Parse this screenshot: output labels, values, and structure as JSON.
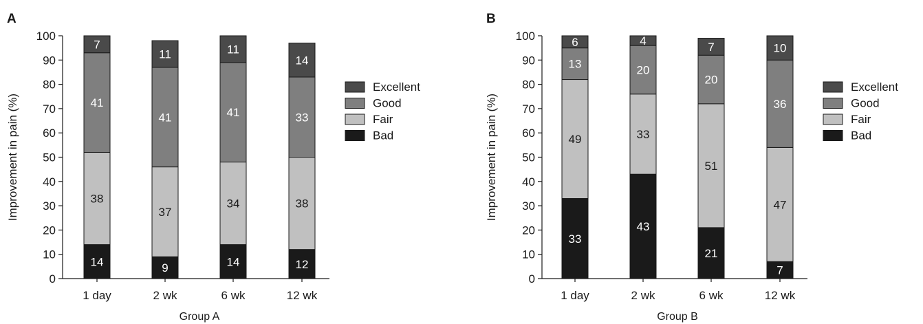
{
  "chart_data": [
    {
      "panel_label": "A",
      "type": "bar",
      "stacked": true,
      "categories": [
        "1 day",
        "2 wk",
        "6 wk",
        "12 wk"
      ],
      "xlabel": "Group A",
      "ylabel": "Improvement in pain (%)",
      "ylim": [
        0,
        100
      ],
      "yticks": [
        0,
        10,
        20,
        30,
        40,
        50,
        60,
        70,
        80,
        90,
        100
      ],
      "grid": false,
      "legend_position": "right",
      "series": [
        {
          "name": "Bad",
          "color": "#1a1a1a",
          "label_color": "#ffffff",
          "values": [
            14,
            9,
            14,
            12
          ]
        },
        {
          "name": "Fair",
          "color": "#c0c0c0",
          "label_color": "#1a1a1a",
          "values": [
            38,
            37,
            34,
            38
          ]
        },
        {
          "name": "Good",
          "color": "#7f7f7f",
          "label_color": "#ffffff",
          "values": [
            41,
            41,
            41,
            33
          ]
        },
        {
          "name": "Excellent",
          "color": "#4a4a4a",
          "label_color": "#ffffff",
          "values": [
            7,
            11,
            11,
            14
          ]
        }
      ]
    },
    {
      "panel_label": "B",
      "type": "bar",
      "stacked": true,
      "categories": [
        "1 day",
        "2 wk",
        "6 wk",
        "12 wk"
      ],
      "xlabel": "Group B",
      "ylabel": "Improvement in pain (%)",
      "ylim": [
        0,
        100
      ],
      "yticks": [
        0,
        10,
        20,
        30,
        40,
        50,
        60,
        70,
        80,
        90,
        100
      ],
      "grid": false,
      "legend_position": "right",
      "series": [
        {
          "name": "Bad",
          "color": "#1a1a1a",
          "label_color": "#ffffff",
          "values": [
            33,
            43,
            21,
            7
          ]
        },
        {
          "name": "Fair",
          "color": "#c0c0c0",
          "label_color": "#1a1a1a",
          "values": [
            49,
            33,
            51,
            47
          ]
        },
        {
          "name": "Good",
          "color": "#7f7f7f",
          "label_color": "#ffffff",
          "values": [
            13,
            20,
            20,
            36
          ]
        },
        {
          "name": "Excellent",
          "color": "#4a4a4a",
          "label_color": "#ffffff",
          "values": [
            6,
            4,
            7,
            10
          ]
        }
      ]
    }
  ]
}
